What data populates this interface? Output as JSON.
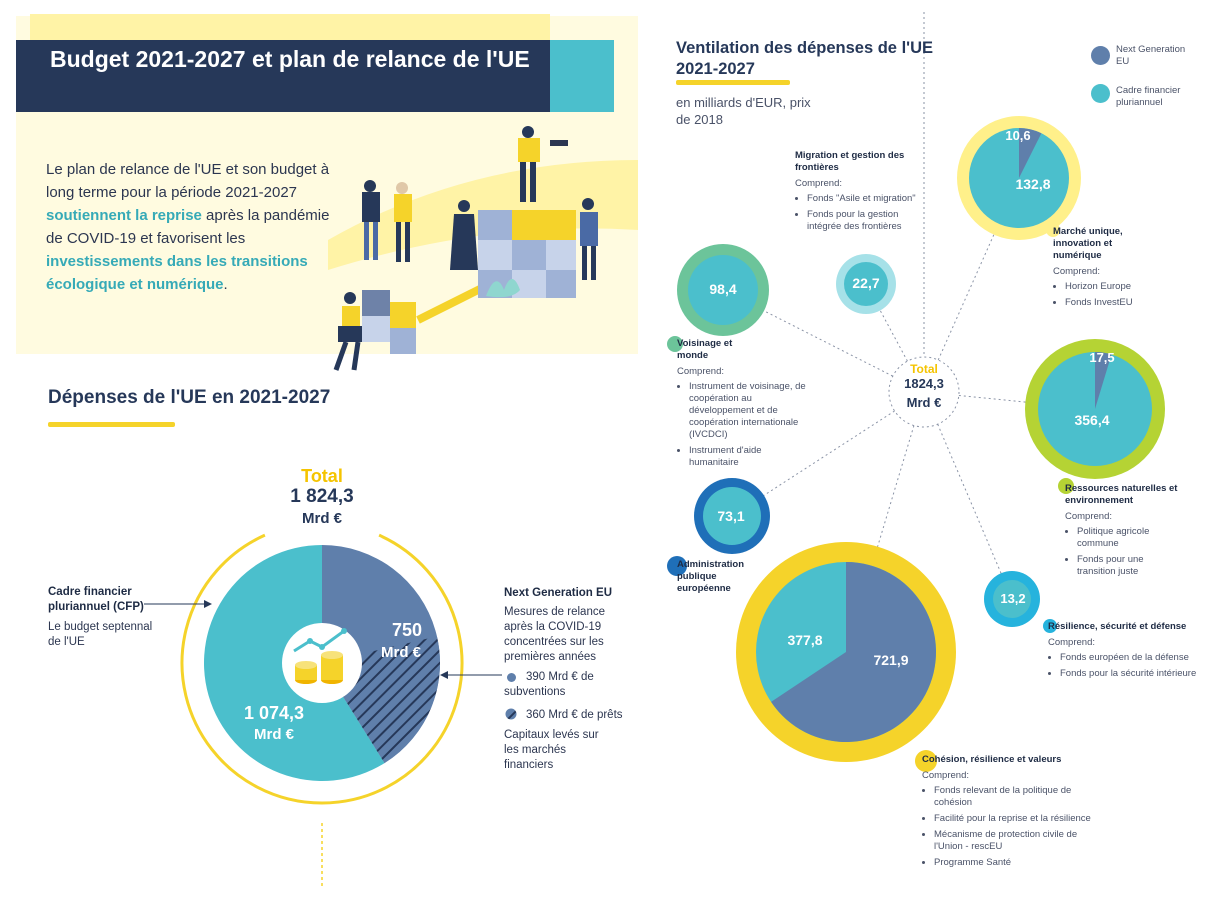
{
  "left": {
    "title": "Budget 2021-2027 et plan de relance de l'UE",
    "intro": {
      "p1": "Le plan de relance de l'UE et son budget à long terme pour la période 2021-2027 ",
      "h1": "soutiennent la reprise",
      "p2": " après la pandémie de COVID-19 et favorisent les ",
      "h2": "investissements dans les transitions écologique et numérique",
      "p3": "."
    },
    "section_title": "Dépenses de l'UE en 2021-2027",
    "total_label": "Total",
    "total_value": "1 824,3",
    "total_unit": "Mrd €",
    "cfp": {
      "title": "Cadre financier pluriannuel (CFP)",
      "desc": "Le budget septennal de l'UE",
      "value": "1 074,3",
      "unit": "Mrd €"
    },
    "ngeu": {
      "title": "Next Generation EU",
      "desc": "Mesures de relance après la COVID-19 concentrées sur les premières années",
      "value": "750",
      "unit": "Mrd €",
      "grants": "390 Mrd € de subventions",
      "loans": "360 Mrd € de prêts",
      "note": "Capitaux levés sur les marchés financiers"
    },
    "colors": {
      "cfp": "#4bbfcc",
      "ngeu": "#5f7fab",
      "yellow": "#f5d32a",
      "navy": "#263859"
    }
  },
  "right": {
    "title": "Ventilation des dépenses de l'UE 2021-2027",
    "subtitle": "en milliards d'EUR, prix de 2018",
    "legend": [
      {
        "name": "Next Generation EU",
        "color": "#5f7fab"
      },
      {
        "name": "Cadre financier pluriannuel",
        "color": "#4bbfcc"
      }
    ],
    "total_label": "Total",
    "total_value": "1824,3",
    "total_unit": "Mrd €",
    "comprend": "Comprend:",
    "categories": {
      "migration": {
        "name": "Migration et gestion des frontières",
        "items": [
          "Fonds \"Asile et migration\"",
          "Fonds pour la gestion intégrée des frontières"
        ]
      },
      "marche": {
        "name": "Marché unique, innovation et numérique",
        "items": [
          "Horizon Europe",
          "Fonds InvestEU"
        ]
      },
      "voisinage": {
        "name": "Voisinage et monde",
        "items": [
          "Instrument de voisinage, de coopération au développement et de coopération internationale (IVCDCI)",
          "Instrument d'aide humanitaire"
        ]
      },
      "ressources": {
        "name": "Ressources naturelles et environnement",
        "items": [
          "Politique agricole commune",
          "Fonds pour une transition juste"
        ]
      },
      "administration": {
        "name": "Administration publique européenne"
      },
      "resilience": {
        "name": "Résilience, sécurité et défense",
        "items": [
          "Fonds européen de la défense",
          "Fonds pour la sécurité intérieure"
        ]
      },
      "cohesion": {
        "name": "Cohésion, résilience et valeurs",
        "items": [
          "Fonds relevant de la politique de cohésion",
          "Facilité pour la reprise et la résilience",
          "Mécanisme de protection civile de l'Union - rescEU",
          "Programme Santé"
        ]
      }
    }
  },
  "chart_data": [
    {
      "type": "pie",
      "title": "Dépenses de l'UE en 2021-2027",
      "categories": [
        "Cadre financier pluriannuel (CFP)",
        "Next Generation EU"
      ],
      "values": [
        1074.3,
        750
      ],
      "total": 1824.3,
      "unit": "Mrd €"
    },
    {
      "type": "pie",
      "title": "Ventilation des dépenses de l'UE 2021-2027",
      "subtitle": "en milliards d'EUR, prix de 2018",
      "series": [
        {
          "name": "Next Generation EU"
        },
        {
          "name": "Cadre financier pluriannuel"
        }
      ],
      "categories": [
        "Migration et gestion des frontières",
        "Marché unique, innovation et numérique",
        "Voisinage et monde",
        "Ressources naturelles et environnement",
        "Administration publique européenne",
        "Résilience, sécurité et défense",
        "Cohésion, résilience et valeurs"
      ],
      "bubbles": [
        {
          "key": "migration",
          "ngeu": 0,
          "cfp": 22.7,
          "ngeu_label": "",
          "cfp_label": "22,7",
          "ring": "#a6e1e8",
          "inner": "#4bbfcc"
        },
        {
          "key": "marche",
          "ngeu": 10.6,
          "cfp": 132.8,
          "ngeu_label": "10,6",
          "cfp_label": "132,8",
          "ring": "#fff08a",
          "inner": "#4bbfcc"
        },
        {
          "key": "voisinage",
          "ngeu": 0,
          "cfp": 98.4,
          "ngeu_label": "",
          "cfp_label": "98,4",
          "ring": "#6cc49a",
          "inner": "#4bbfcc"
        },
        {
          "key": "ressources",
          "ngeu": 17.5,
          "cfp": 356.4,
          "ngeu_label": "17,5",
          "cfp_label": "356,4",
          "ring": "#b5d334",
          "inner": "#4bbfcc"
        },
        {
          "key": "administration",
          "ngeu": 0,
          "cfp": 73.1,
          "ngeu_label": "",
          "cfp_label": "73,1",
          "ring": "#1f6fb8",
          "inner": "#4bbfcc"
        },
        {
          "key": "resilience",
          "ngeu": 0,
          "cfp": 13.2,
          "ngeu_label": "",
          "cfp_label": "13,2",
          "ring": "#26b3dd",
          "inner": "#4bbfcc"
        },
        {
          "key": "cohesion",
          "ngeu": 721.9,
          "cfp": 377.8,
          "ngeu_label": "721,9",
          "cfp_label": "377,8",
          "ring": "#f5d32a",
          "inner": "#4bbfcc"
        }
      ],
      "total": 1824.3,
      "unit": "Mrd €"
    }
  ]
}
